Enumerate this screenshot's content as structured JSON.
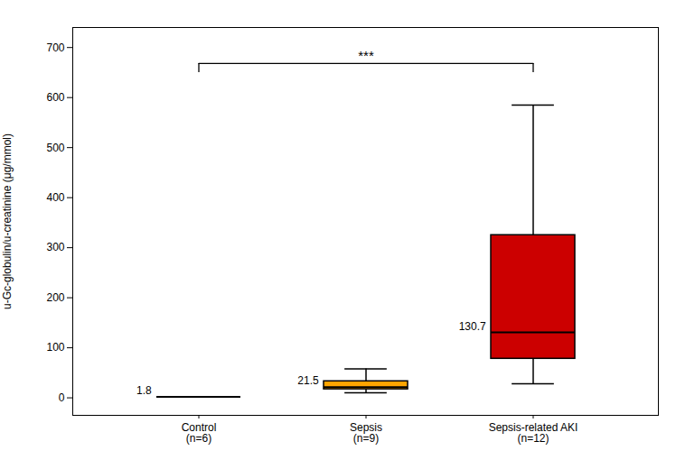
{
  "chart_data": {
    "type": "box",
    "categories": [
      "Control\n(n=6)",
      "Sepsis\n(n=9)",
      "Sepsis-related AKI\n(n=12)"
    ],
    "ylabel": "u-Gc-globulin/u-creatinine (μg/mmol)",
    "ylim": [
      -35,
      740
    ],
    "yticks": [
      0,
      100,
      200,
      300,
      400,
      500,
      600,
      700
    ],
    "grid": false,
    "data_labels": true,
    "boxes": [
      {
        "median": 1.8
      },
      {
        "median": 21.5,
        "q1": 17.0,
        "q3": 33.0,
        "whislo": 10.0,
        "whishi": 58.0,
        "color": "#FFA500"
      },
      {
        "median": 130.7,
        "q1": 78.0,
        "q3": 325.0,
        "whislo": 28.0,
        "whishi": 585.0,
        "color": "#CC0000"
      }
    ],
    "annotations": [
      {
        "text": "***",
        "from": "Control\n(n=6)",
        "to": "Sepsis-related AKI\n(n=12)",
        "y": 668,
        "y_end": 650
      }
    ]
  }
}
